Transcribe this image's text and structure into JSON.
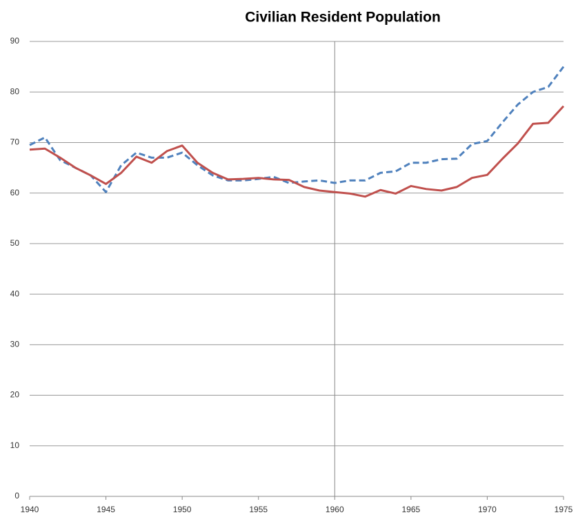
{
  "chart_data": {
    "type": "line",
    "title": "Civilian Resident Population",
    "x": [
      1940,
      1941,
      1942,
      1943,
      1944,
      1945,
      1946,
      1947,
      1948,
      1949,
      1950,
      1951,
      1952,
      1953,
      1954,
      1955,
      1956,
      1957,
      1958,
      1959,
      1960,
      1961,
      1962,
      1963,
      1964,
      1965,
      1966,
      1967,
      1968,
      1969,
      1970,
      1971,
      1972,
      1973,
      1974,
      1975
    ],
    "series": [
      {
        "color": "#4f81bd",
        "dashed": true,
        "values": [
          69.5,
          71,
          66.5,
          65,
          63.5,
          60.2,
          65.5,
          68,
          67,
          67,
          68,
          65.5,
          63.5,
          62.5,
          62.5,
          62.8,
          63.2,
          62,
          62.3,
          62.5,
          62,
          62.5,
          62.5,
          64,
          64.3,
          66,
          66,
          66.7,
          66.8,
          69.7,
          70.3,
          74,
          77.5,
          80,
          81,
          85
        ]
      },
      {
        "color": "#c0504d",
        "dashed": false,
        "values": [
          68.6,
          68.8,
          67,
          65,
          63.5,
          61.8,
          64,
          67.2,
          66,
          68.3,
          69.4,
          66,
          64,
          62.7,
          62.8,
          63,
          62.7,
          62.6,
          61.2,
          60.5,
          60.2,
          59.9,
          59.3,
          60.6,
          59.9,
          61.4,
          60.8,
          60.5,
          61.2,
          63,
          63.6,
          66.8,
          69.8,
          73.7,
          73.9,
          77.2
        ]
      }
    ],
    "xlim": [
      1940,
      1975
    ],
    "xticks": [
      1940,
      1945,
      1950,
      1955,
      1960,
      1965,
      1970,
      1975
    ],
    "ylim": [
      0,
      90
    ],
    "yticks": [
      0,
      10,
      20,
      30,
      40,
      50,
      60,
      70,
      80,
      90
    ],
    "grid": true,
    "vline": 1960
  }
}
